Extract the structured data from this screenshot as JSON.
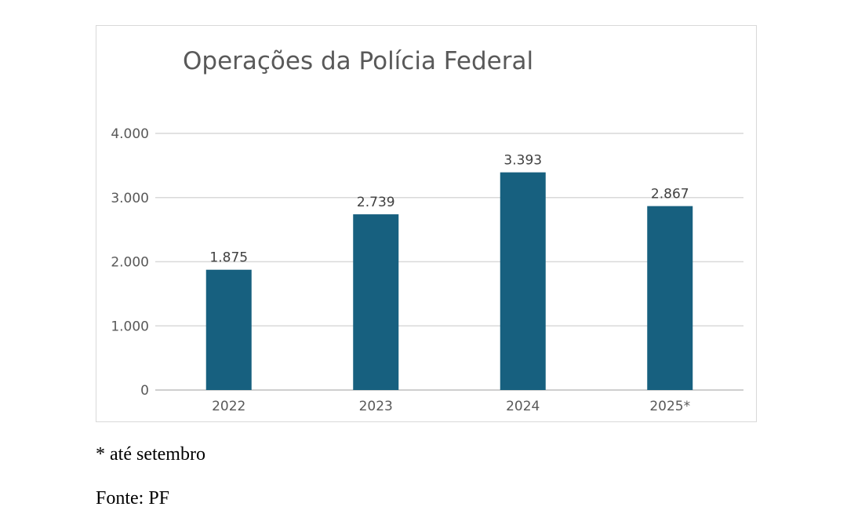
{
  "chart_data": {
    "type": "bar",
    "title": "Operações da Polícia Federal",
    "categories": [
      "2022",
      "2023",
      "2024",
      "2025*"
    ],
    "values": [
      1875,
      2739,
      3393,
      2867
    ],
    "value_labels": [
      "1.875",
      "2.739",
      "3.393",
      "2.867"
    ],
    "yticks": [
      0,
      1000,
      2000,
      3000,
      4000
    ],
    "ytick_labels": [
      "0",
      "1.000",
      "2.000",
      "3.000",
      "4.000"
    ],
    "ylim": [
      0,
      4000
    ],
    "grid": true,
    "bar_color": "#17607f",
    "xlabel": "",
    "ylabel": ""
  },
  "footnote": "* até setembro",
  "source": "Fonte: PF"
}
